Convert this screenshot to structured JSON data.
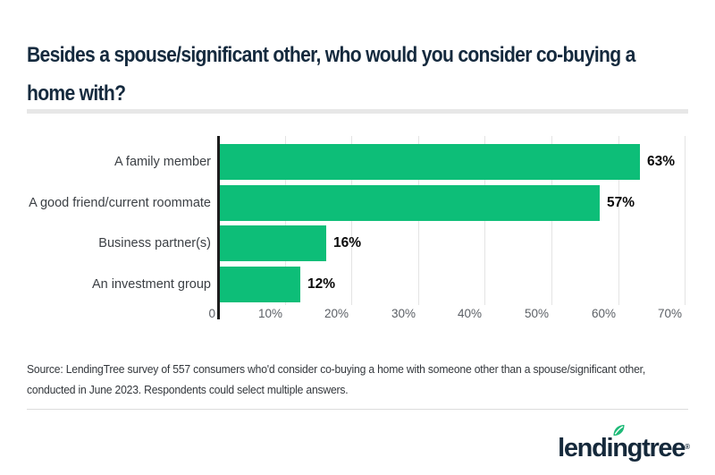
{
  "title": {
    "line1": "Besides a spouse/significant other, who would you consider co-buying a",
    "line2": "home with?"
  },
  "chart_data": {
    "type": "bar",
    "orientation": "horizontal",
    "categories": [
      "A family member",
      "A good friend/current roommate",
      "Business partner(s)",
      "An investment group"
    ],
    "values": [
      63,
      57,
      16,
      12
    ],
    "value_labels": [
      "63%",
      "57%",
      "16%",
      "12%"
    ],
    "x_ticks": [
      "0",
      "10%",
      "20%",
      "30%",
      "40%",
      "50%",
      "60%",
      "70%"
    ],
    "xlim": [
      0,
      70
    ],
    "xlabel": "",
    "ylabel": "",
    "title": "Besides a spouse/significant other, who would you consider co-buying a home with?",
    "grid": true,
    "legend": false,
    "bar_color": "#0dbe78",
    "axis_color": "#1c1c1c",
    "gridline_color": "#e4e4e4"
  },
  "source": {
    "line1": "Source: LendingTree survey of 557 consumers who'd consider co-buying a home with someone other than a spouse/significant other,",
    "line2": "conducted in June 2023. Respondents could select multiple answers."
  },
  "logo": {
    "name": "lendingtree",
    "pre": "lendi",
    "mid": "n",
    "post": "gtree",
    "trademark": "®",
    "leaf_color": "#1fba78",
    "text_color": "#15293b"
  },
  "colors": {
    "title_text": "#152a3e",
    "category_label": "#3c4045",
    "value_label": "#0a0a0a",
    "tick_label": "#5c6066",
    "divider": "#e7e7e7"
  }
}
